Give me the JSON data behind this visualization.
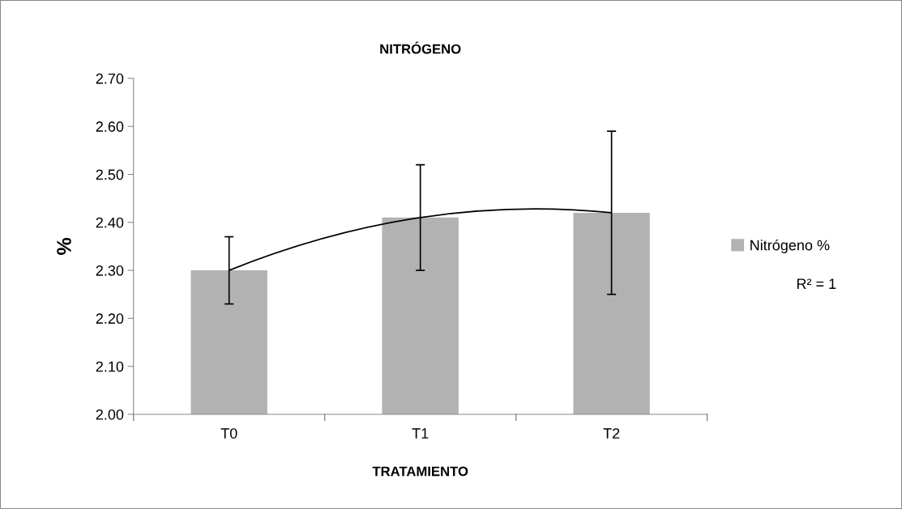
{
  "chart_data": {
    "type": "bar",
    "title": "NITRÓGENO",
    "xlabel": "TRATAMIENTO",
    "ylabel": "%",
    "categories": [
      "T0",
      "T1",
      "T2"
    ],
    "series": [
      {
        "name": "Nitrógeno %",
        "color": "#b2b2b2",
        "values": [
          2.3,
          2.41,
          2.42
        ],
        "errors": [
          0.07,
          0.11,
          0.17
        ]
      },
      {
        "type": "line",
        "color": "#000000",
        "values": [
          2.3,
          2.41,
          2.42
        ]
      }
    ],
    "annotations": [
      "R² = 1"
    ],
    "ylim": [
      2.0,
      2.7
    ],
    "yticks": [
      {
        "value": 2.0,
        "label": "2.00"
      },
      {
        "value": 2.1,
        "label": "2.10"
      },
      {
        "value": 2.2,
        "label": "2.20"
      },
      {
        "value": 2.3,
        "label": "2.30"
      },
      {
        "value": 2.4,
        "label": "2.40"
      },
      {
        "value": 2.5,
        "label": "2.50"
      },
      {
        "value": 2.6,
        "label": "2.60"
      },
      {
        "value": 2.7,
        "label": "2.70"
      }
    ],
    "grid": false,
    "legend": "right"
  }
}
